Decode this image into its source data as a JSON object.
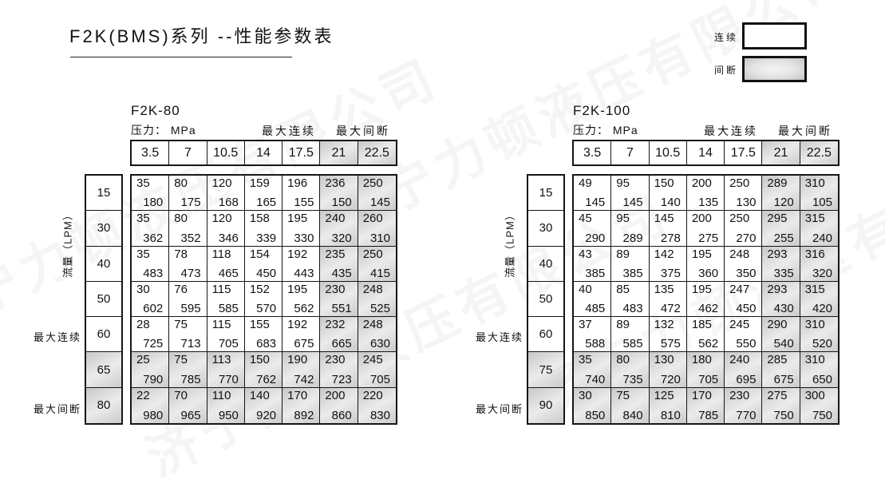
{
  "page": {
    "title": "F2K(BMS)系列 --性能参数表"
  },
  "watermark": {
    "text": "济宁力顿液压有限公司"
  },
  "legend": {
    "continuous_label": "连续",
    "intermittent_label": "间断"
  },
  "tables": [
    {
      "name": "F2K-80",
      "pressure_caption": "压力： MPa",
      "max_continuous_label": "最大连续",
      "max_intermittent_label": "最大间断",
      "flow_axis_label": "流量（LPM）",
      "pressures": [
        "3.5",
        "7",
        "10.5",
        "14",
        "17.5",
        "21",
        "22.5"
      ],
      "gray_pressure_cols": [
        5,
        6
      ],
      "rows": [
        {
          "flow": "15",
          "gray": false,
          "cells": [
            [
              "35",
              "180"
            ],
            [
              "80",
              "175"
            ],
            [
              "120",
              "168"
            ],
            [
              "159",
              "165"
            ],
            [
              "196",
              "155"
            ],
            [
              "236",
              "150"
            ],
            [
              "250",
              "145"
            ]
          ]
        },
        {
          "flow": "30",
          "gray": false,
          "cells": [
            [
              "35",
              "362"
            ],
            [
              "80",
              "352"
            ],
            [
              "120",
              "346"
            ],
            [
              "158",
              "339"
            ],
            [
              "195",
              "330"
            ],
            [
              "240",
              "320"
            ],
            [
              "260",
              "310"
            ]
          ]
        },
        {
          "flow": "40",
          "gray": false,
          "cells": [
            [
              "35",
              "483"
            ],
            [
              "78",
              "473"
            ],
            [
              "118",
              "465"
            ],
            [
              "154",
              "450"
            ],
            [
              "192",
              "443"
            ],
            [
              "235",
              "435"
            ],
            [
              "250",
              "415"
            ]
          ]
        },
        {
          "flow": "50",
          "gray": false,
          "cells": [
            [
              "30",
              "602"
            ],
            [
              "76",
              "595"
            ],
            [
              "115",
              "585"
            ],
            [
              "152",
              "570"
            ],
            [
              "195",
              "562"
            ],
            [
              "230",
              "551"
            ],
            [
              "248",
              "525"
            ]
          ]
        },
        {
          "flow": "60",
          "gray": false,
          "cells": [
            [
              "28",
              "725"
            ],
            [
              "75",
              "713"
            ],
            [
              "115",
              "705"
            ],
            [
              "155",
              "683"
            ],
            [
              "192",
              "675"
            ],
            [
              "232",
              "665"
            ],
            [
              "248",
              "630"
            ]
          ]
        },
        {
          "flow": "65",
          "gray": true,
          "cells": [
            [
              "25",
              "790"
            ],
            [
              "75",
              "785"
            ],
            [
              "113",
              "770"
            ],
            [
              "150",
              "762"
            ],
            [
              "190",
              "742"
            ],
            [
              "230",
              "723"
            ],
            [
              "245",
              "705"
            ]
          ]
        },
        {
          "flow": "80",
          "gray": true,
          "cells": [
            [
              "22",
              "980"
            ],
            [
              "70",
              "965"
            ],
            [
              "110",
              "950"
            ],
            [
              "140",
              "920"
            ],
            [
              "170",
              "892"
            ],
            [
              "200",
              "860"
            ],
            [
              "220",
              "830"
            ]
          ]
        }
      ]
    },
    {
      "name": "F2K-100",
      "pressure_caption": "压力： MPa",
      "max_continuous_label": "最大连续",
      "max_intermittent_label": "最大间断",
      "flow_axis_label": "流量（LPM）",
      "pressures": [
        "3.5",
        "7",
        "10.5",
        "14",
        "17.5",
        "21",
        "22.5"
      ],
      "gray_pressure_cols": [
        5,
        6
      ],
      "rows": [
        {
          "flow": "15",
          "gray": false,
          "cells": [
            [
              "49",
              "145"
            ],
            [
              "95",
              "145"
            ],
            [
              "150",
              "140"
            ],
            [
              "200",
              "135"
            ],
            [
              "250",
              "130"
            ],
            [
              "289",
              "120"
            ],
            [
              "310",
              "105"
            ]
          ]
        },
        {
          "flow": "30",
          "gray": false,
          "cells": [
            [
              "45",
              "290"
            ],
            [
              "95",
              "289"
            ],
            [
              "145",
              "278"
            ],
            [
              "200",
              "275"
            ],
            [
              "250",
              "270"
            ],
            [
              "295",
              "255"
            ],
            [
              "315",
              "240"
            ]
          ]
        },
        {
          "flow": "40",
          "gray": false,
          "cells": [
            [
              "43",
              "385"
            ],
            [
              "89",
              "385"
            ],
            [
              "142",
              "375"
            ],
            [
              "195",
              "360"
            ],
            [
              "248",
              "350"
            ],
            [
              "293",
              "335"
            ],
            [
              "316",
              "320"
            ]
          ]
        },
        {
          "flow": "50",
          "gray": false,
          "cells": [
            [
              "40",
              "485"
            ],
            [
              "85",
              "483"
            ],
            [
              "135",
              "472"
            ],
            [
              "195",
              "462"
            ],
            [
              "247",
              "450"
            ],
            [
              "293",
              "430"
            ],
            [
              "315",
              "420"
            ]
          ]
        },
        {
          "flow": "60",
          "gray": false,
          "cells": [
            [
              "37",
              "588"
            ],
            [
              "89",
              "585"
            ],
            [
              "132",
              "575"
            ],
            [
              "185",
              "562"
            ],
            [
              "245",
              "550"
            ],
            [
              "290",
              "540"
            ],
            [
              "310",
              "520"
            ]
          ]
        },
        {
          "flow": "75",
          "gray": true,
          "cells": [
            [
              "35",
              "740"
            ],
            [
              "80",
              "735"
            ],
            [
              "130",
              "720"
            ],
            [
              "180",
              "705"
            ],
            [
              "240",
              "695"
            ],
            [
              "285",
              "675"
            ],
            [
              "310",
              "650"
            ]
          ]
        },
        {
          "flow": "90",
          "gray": true,
          "cells": [
            [
              "30",
              "850"
            ],
            [
              "75",
              "840"
            ],
            [
              "125",
              "810"
            ],
            [
              "170",
              "785"
            ],
            [
              "230",
              "770"
            ],
            [
              "275",
              "750"
            ],
            [
              "300",
              "750"
            ]
          ]
        }
      ]
    }
  ]
}
